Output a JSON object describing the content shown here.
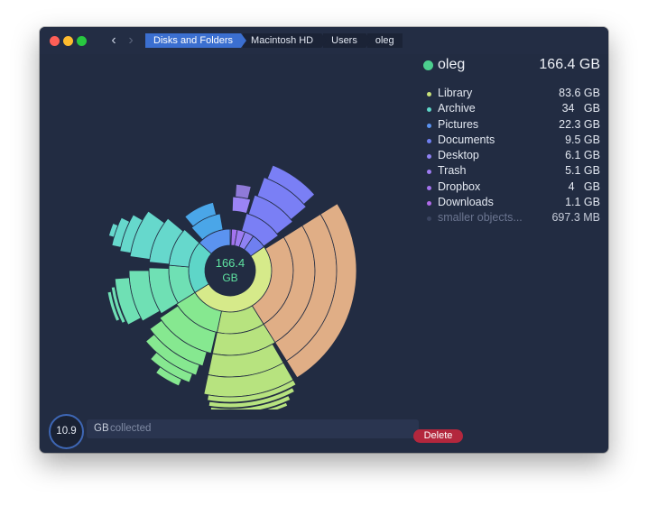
{
  "breadcrumbs": [
    "Disks and Folders",
    "Macintosh HD",
    "Users",
    "oleg"
  ],
  "center": {
    "value": "166.4",
    "unit": "GB"
  },
  "legend": {
    "header": {
      "name": "oleg",
      "size": "166.4 GB",
      "color": "#4ccf8e"
    },
    "items": [
      {
        "name": "Library",
        "size": "83.6 GB",
        "color": "#c9e27a"
      },
      {
        "name": "Archive",
        "size": "34   GB",
        "color": "#5ed6c8"
      },
      {
        "name": "Pictures",
        "size": "22.3 GB",
        "color": "#5b93f0"
      },
      {
        "name": "Documents",
        "size": "9.5 GB",
        "color": "#6f7ff0"
      },
      {
        "name": "Desktop",
        "size": "6.1 GB",
        "color": "#8f82f4"
      },
      {
        "name": "Trash",
        "size": "5.1 GB",
        "color": "#9e7cf2"
      },
      {
        "name": "Dropbox",
        "size": "4   GB",
        "color": "#a373ee"
      },
      {
        "name": "Downloads",
        "size": "1.1 GB",
        "color": "#b06be8"
      },
      {
        "name": "smaller objects...",
        "size": "697.3 MB",
        "color": "#3a4460"
      }
    ]
  },
  "bottom": {
    "collected": "10.9",
    "unit": "GB",
    "label": "collected",
    "delete_label": "Delete"
  }
}
